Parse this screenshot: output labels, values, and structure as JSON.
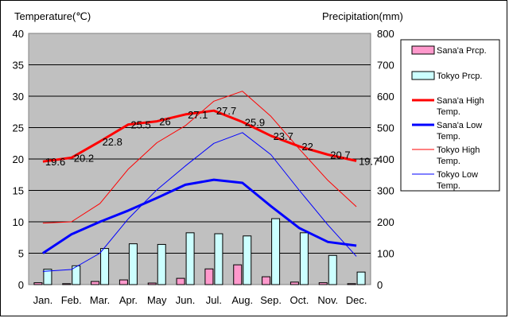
{
  "chart_data": {
    "type": "bar+line",
    "left_axis_title": "Temperature(℃)",
    "right_axis_title": "Precipitation(mm)",
    "categories": [
      "Jan.",
      "Feb.",
      "Mar.",
      "Apr.",
      "May",
      "Jun.",
      "Jul.",
      "Aug.",
      "Sep.",
      "Oct.",
      "Nov.",
      "Dec."
    ],
    "ylim_left": [
      0,
      40
    ],
    "ylim_right": [
      0,
      800
    ],
    "yticks_left": [
      "0",
      "5",
      "10",
      "15",
      "20",
      "25",
      "30",
      "35",
      "40"
    ],
    "yticks_right": [
      "0",
      "100",
      "200",
      "300",
      "400",
      "500",
      "600",
      "700",
      "800"
    ],
    "grid": true,
    "legend_position": "right",
    "bar_series": [
      {
        "name": "Sana'a Prcp.",
        "color": "#ff99cc",
        "values": [
          6,
          3,
          10,
          15,
          5,
          20,
          50,
          63,
          25,
          8,
          6,
          3
        ]
      },
      {
        "name": "Tokyo Prcp.",
        "color": "#ccffff",
        "values": [
          49,
          60,
          115,
          130,
          128,
          165,
          162,
          155,
          210,
          165,
          93,
          40
        ]
      }
    ],
    "line_series": [
      {
        "name": "Sana'a High Temp.",
        "color": "#ff0000",
        "width": 3,
        "values": [
          19.6,
          20.2,
          22.8,
          25.5,
          26,
          27.1,
          27.7,
          25.9,
          23.7,
          22,
          20.7,
          19.7
        ]
      },
      {
        "name": "Sana'a Low Temp.",
        "color": "#0000ff",
        "width": 3,
        "values": [
          5.0,
          8.0,
          10.0,
          11.8,
          13.8,
          15.9,
          16.7,
          16.2,
          12.5,
          9.0,
          6.8,
          6.2
        ]
      },
      {
        "name": "Tokyo High Temp.",
        "color": "#ff0000",
        "width": 1,
        "values": [
          9.8,
          10.0,
          12.9,
          18.4,
          22.6,
          25.3,
          29.2,
          30.8,
          26.8,
          21.6,
          16.6,
          12.4
        ]
      },
      {
        "name": "Tokyo Low Temp.",
        "color": "#0000ff",
        "width": 1,
        "values": [
          2.1,
          2.4,
          5.0,
          10.5,
          15.1,
          18.9,
          22.5,
          24.2,
          20.7,
          15.0,
          9.5,
          4.5
        ]
      }
    ],
    "data_labels": [
      "19.6",
      "20.2",
      "22.8",
      "25.5",
      "26",
      "27.1",
      "27.7",
      "25.9",
      "23.7",
      "22",
      "20.7",
      "19.7"
    ]
  }
}
